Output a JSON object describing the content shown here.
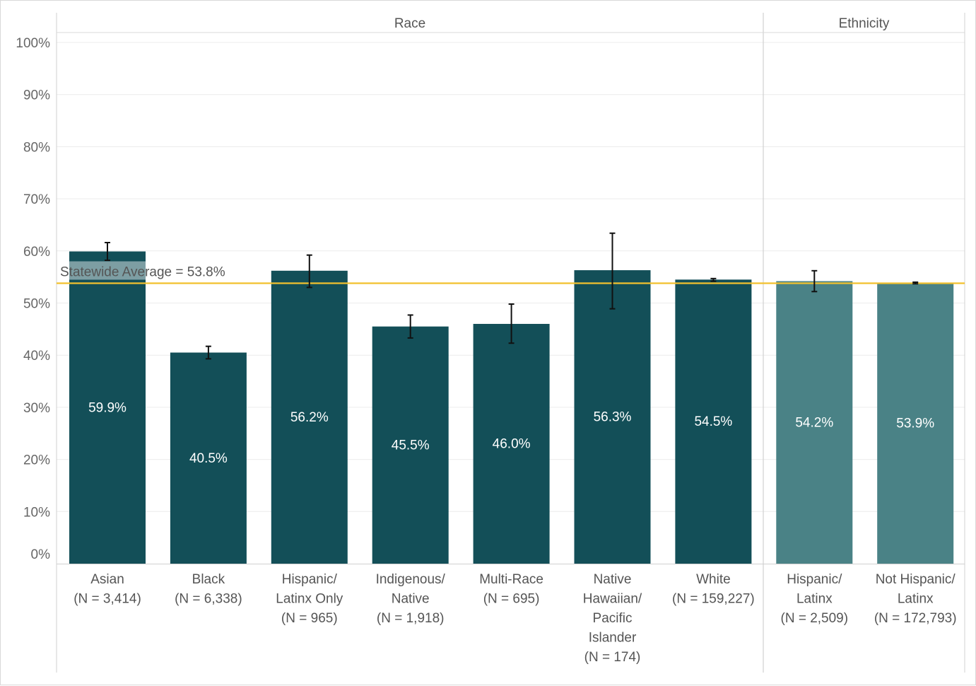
{
  "chart_data": {
    "type": "bar",
    "groups": [
      {
        "name": "Race",
        "categories": [
          "Asian",
          "Black",
          "Hispanic/Latinx Only",
          "Indigenous/Native",
          "Multi-Race",
          "Native Hawaiian/Pacific Islander",
          "White"
        ]
      },
      {
        "name": "Ethnicity",
        "categories": [
          "Hispanic/Latinx",
          "Not Hispanic/Latinx"
        ]
      }
    ],
    "bars": [
      {
        "group": "Race",
        "label_lines": [
          "Asian",
          "(N = 3,414)"
        ],
        "value": 59.9,
        "value_label": "59.9%",
        "ci": [
          58.2,
          61.6
        ],
        "color": "#134f58"
      },
      {
        "group": "Race",
        "label_lines": [
          "Black",
          "(N = 6,338)"
        ],
        "value": 40.5,
        "value_label": "40.5%",
        "ci": [
          39.3,
          41.7
        ],
        "color": "#134f58"
      },
      {
        "group": "Race",
        "label_lines": [
          "Hispanic/",
          "Latinx Only",
          "(N = 965)"
        ],
        "value": 56.2,
        "value_label": "56.2%",
        "ci": [
          53.0,
          59.2
        ],
        "color": "#134f58"
      },
      {
        "group": "Race",
        "label_lines": [
          "Indigenous/",
          "Native",
          "(N = 1,918)"
        ],
        "value": 45.5,
        "value_label": "45.5%",
        "ci": [
          43.3,
          47.7
        ],
        "color": "#134f58"
      },
      {
        "group": "Race",
        "label_lines": [
          "Multi-Race",
          "(N = 695)"
        ],
        "value": 46.0,
        "value_label": "46.0%",
        "ci": [
          42.3,
          49.8
        ],
        "color": "#134f58"
      },
      {
        "group": "Race",
        "label_lines": [
          "Native",
          "Hawaiian/",
          "Pacific",
          "Islander",
          "(N = 174)"
        ],
        "value": 56.3,
        "value_label": "56.3%",
        "ci": [
          48.9,
          63.4
        ],
        "color": "#134f58"
      },
      {
        "group": "Race",
        "label_lines": [
          "White",
          "(N = 159,227)"
        ],
        "value": 54.5,
        "value_label": "54.5%",
        "ci": [
          54.2,
          54.7
        ],
        "color": "#134f58"
      },
      {
        "group": "Ethnicity",
        "label_lines": [
          "Hispanic/",
          "Latinx",
          "(N = 2,509)"
        ],
        "value": 54.2,
        "value_label": "54.2%",
        "ci": [
          52.2,
          56.2
        ],
        "color": "#4a8286"
      },
      {
        "group": "Ethnicity",
        "label_lines": [
          "Not Hispanic/",
          "Latinx",
          "(N = 172,793)"
        ],
        "value": 53.9,
        "value_label": "53.9%",
        "ci": [
          53.7,
          54.0
        ],
        "color": "#4a8286"
      }
    ],
    "reference_line": {
      "value": 53.8,
      "label": "Statewide Average = 53.8%",
      "color": "#f2c12e"
    },
    "y_ticks": [
      "0%",
      "10%",
      "20%",
      "30%",
      "40%",
      "50%",
      "60%",
      "70%",
      "80%",
      "90%",
      "100%"
    ],
    "ylim": [
      0,
      100
    ],
    "grid": true,
    "title": "",
    "xlabel": "",
    "ylabel": ""
  }
}
